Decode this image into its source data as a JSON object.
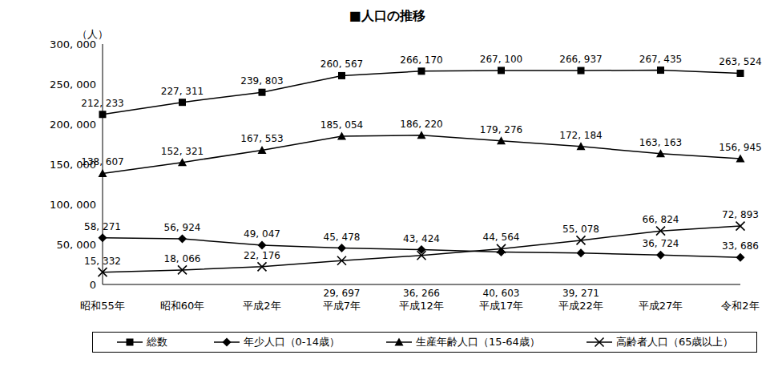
{
  "chart_data": {
    "type": "line",
    "title": "■人口の推移",
    "y_label": "（人）",
    "categories": [
      "昭和55年",
      "昭和60年",
      "平成2年",
      "平成7年",
      "平成12年",
      "平成17年",
      "平成22年",
      "平成27年",
      "令和2年"
    ],
    "series": [
      {
        "name": "総数",
        "color": "#000000",
        "marker": "square",
        "values": [
          212233,
          227311,
          239803,
          260567,
          266170,
          267100,
          266937,
          267435,
          263524
        ],
        "value_labels": [
          "212, 233",
          "227, 311",
          "239, 803",
          "260, 567",
          "266, 170",
          "267, 100",
          "266, 937",
          "267, 435",
          "263, 524"
        ]
      },
      {
        "name": "年少人口（0-14歳）",
        "color": "#000000",
        "marker": "diamond",
        "values": [
          58271,
          56924,
          49047,
          45478,
          43424,
          40603,
          39271,
          36724,
          33686
        ],
        "value_labels": [
          "58, 271",
          "56, 924",
          "49, 047",
          "45, 478",
          "43, 424",
          "40, 603",
          "39, 271",
          "36, 724",
          "33, 686"
        ]
      },
      {
        "name": "生産年齢人口（15-64歳）",
        "color": "#000000",
        "marker": "triangle",
        "values": [
          138607,
          152321,
          167553,
          185054,
          186220,
          179276,
          172184,
          163163,
          156945
        ],
        "value_labels": [
          "138, 607",
          "152, 321",
          "167, 553",
          "185, 054",
          "186, 220",
          "179, 276",
          "172, 184",
          "163, 163",
          "156, 945"
        ]
      },
      {
        "name": "高齢者人口（65歳以上）",
        "color": "#000000",
        "marker": "x",
        "values": [
          15332,
          18066,
          22176,
          29697,
          36266,
          44564,
          55078,
          66824,
          72893
        ],
        "value_labels": [
          "15, 332",
          "18, 066",
          "22, 176",
          "29, 697",
          "36, 266",
          "44, 564",
          "55, 078",
          "66, 824",
          "72, 893"
        ]
      }
    ],
    "ylim": [
      0,
      300000
    ],
    "yticks": [
      0,
      {
        "value": 50000,
        "label": "50, 000"
      },
      {
        "value": 100000,
        "label": "100, 000"
      },
      {
        "value": 150000,
        "label": "150, 000"
      },
      {
        "value": 200000,
        "label": "200, 000"
      },
      {
        "value": 250000,
        "label": "250, 000"
      },
      {
        "value": 300000,
        "label": "300, 000"
      }
    ],
    "grid": false,
    "legend": "bottom",
    "data_labels": true
  }
}
